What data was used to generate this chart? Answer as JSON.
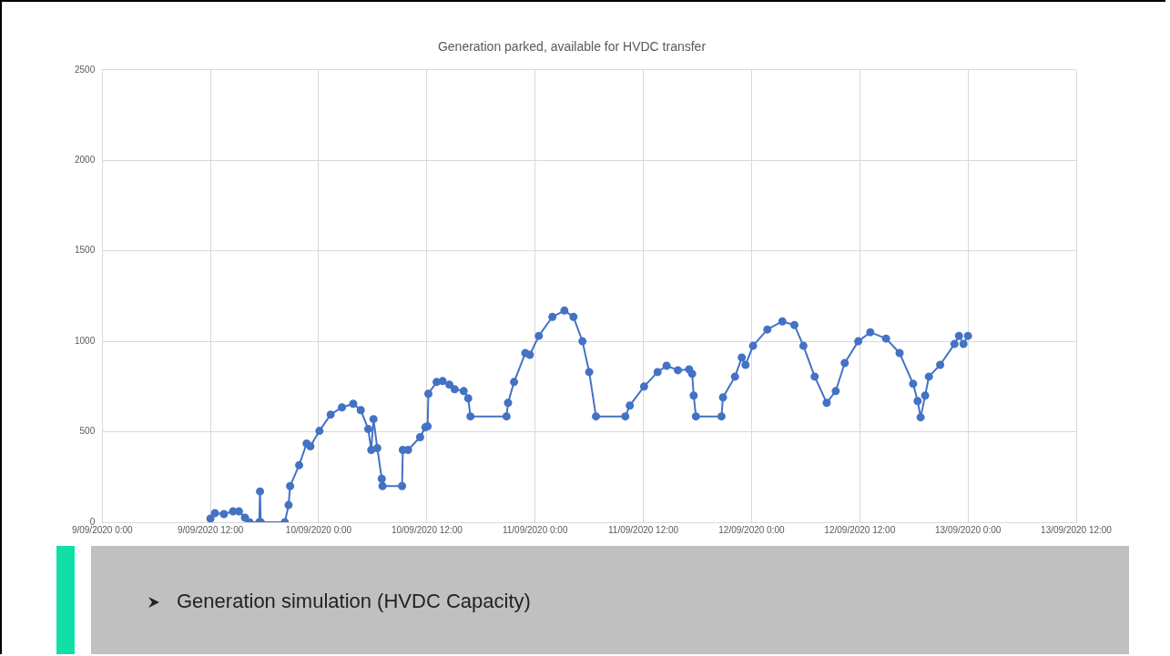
{
  "chart_data": {
    "type": "line",
    "title": "Generation parked, available for HVDC transfer",
    "color": "#4472c4",
    "marker": "circle",
    "grid": true,
    "legend": false,
    "xlim": [
      "2020-09-09T00:00",
      "2020-09-13T12:00"
    ],
    "xticks": [
      {
        "value": "2020-09-09T00:00",
        "label": "9/09/2020 0:00"
      },
      {
        "value": "2020-09-09T12:00",
        "label": "9/09/2020 12:00"
      },
      {
        "value": "2020-09-10T00:00",
        "label": "10/09/2020 0:00"
      },
      {
        "value": "2020-09-10T12:00",
        "label": "10/09/2020 12:00"
      },
      {
        "value": "2020-09-11T00:00",
        "label": "11/09/2020 0:00"
      },
      {
        "value": "2020-09-11T12:00",
        "label": "11/09/2020 12:00"
      },
      {
        "value": "2020-09-12T00:00",
        "label": "12/09/2020 0:00"
      },
      {
        "value": "2020-09-12T12:00",
        "label": "12/09/2020 12:00"
      },
      {
        "value": "2020-09-13T00:00",
        "label": "13/09/2020 0:00"
      },
      {
        "value": "2020-09-13T12:00",
        "label": "13/09/2020 12:00"
      }
    ],
    "ylim": [
      0,
      2500
    ],
    "yticks": [
      0,
      500,
      1000,
      1500,
      2000,
      2500
    ],
    "x": [
      "2020-09-09T12:00",
      "2020-09-09T12:30",
      "2020-09-09T13:30",
      "2020-09-09T14:30",
      "2020-09-09T15:10",
      "2020-09-09T15:50",
      "2020-09-09T16:20",
      "2020-09-09T17:25",
      "2020-09-09T17:30",
      "2020-09-09T17:35",
      "2020-09-09T20:15",
      "2020-09-09T20:40",
      "2020-09-09T20:50",
      "2020-09-09T21:50",
      "2020-09-09T22:40",
      "2020-09-09T23:05",
      "2020-09-10T00:05",
      "2020-09-10T01:20",
      "2020-09-10T02:35",
      "2020-09-10T03:50",
      "2020-09-10T04:40",
      "2020-09-10T05:30",
      "2020-09-10T05:50",
      "2020-09-10T06:05",
      "2020-09-10T06:30",
      "2020-09-10T07:00",
      "2020-09-10T07:05",
      "2020-09-10T09:15",
      "2020-09-10T09:20",
      "2020-09-10T09:55",
      "2020-09-10T11:15",
      "2020-09-10T11:50",
      "2020-09-10T12:05",
      "2020-09-10T12:10",
      "2020-09-10T13:05",
      "2020-09-10T13:45",
      "2020-09-10T14:30",
      "2020-09-10T15:05",
      "2020-09-10T16:05",
      "2020-09-10T16:35",
      "2020-09-10T16:50",
      "2020-09-10T20:50",
      "2020-09-10T21:00",
      "2020-09-10T21:40",
      "2020-09-10T22:55",
      "2020-09-10T23:25",
      "2020-09-11T00:25",
      "2020-09-11T01:55",
      "2020-09-11T03:15",
      "2020-09-11T04:15",
      "2020-09-11T05:15",
      "2020-09-11T06:00",
      "2020-09-11T06:45",
      "2020-09-11T10:00",
      "2020-09-11T10:30",
      "2020-09-11T12:05",
      "2020-09-11T13:35",
      "2020-09-11T14:35",
      "2020-09-11T15:50",
      "2020-09-11T17:05",
      "2020-09-11T17:25",
      "2020-09-11T17:35",
      "2020-09-11T17:50",
      "2020-09-11T20:40",
      "2020-09-11T20:50",
      "2020-09-11T22:10",
      "2020-09-11T22:55",
      "2020-09-11T23:20",
      "2020-09-12T00:10",
      "2020-09-12T01:45",
      "2020-09-12T03:25",
      "2020-09-12T04:45",
      "2020-09-12T05:45",
      "2020-09-12T07:00",
      "2020-09-12T08:20",
      "2020-09-12T09:20",
      "2020-09-12T10:20",
      "2020-09-12T11:50",
      "2020-09-12T13:10",
      "2020-09-12T14:55",
      "2020-09-12T16:25",
      "2020-09-12T17:55",
      "2020-09-12T18:25",
      "2020-09-12T18:45",
      "2020-09-12T19:15",
      "2020-09-12T19:40",
      "2020-09-12T20:55",
      "2020-09-12T22:30",
      "2020-09-12T23:00",
      "2020-09-12T23:30",
      "2020-09-13T00:00"
    ],
    "values": [
      20,
      50,
      45,
      60,
      60,
      25,
      0,
      0,
      170,
      0,
      0,
      95,
      200,
      315,
      435,
      420,
      505,
      595,
      635,
      655,
      620,
      515,
      400,
      570,
      410,
      240,
      200,
      200,
      400,
      400,
      470,
      525,
      530,
      710,
      775,
      780,
      760,
      735,
      725,
      685,
      585,
      585,
      660,
      775,
      935,
      925,
      1030,
      1135,
      1170,
      1135,
      1000,
      830,
      585,
      585,
      645,
      750,
      830,
      865,
      840,
      845,
      820,
      700,
      585,
      585,
      690,
      805,
      910,
      870,
      975,
      1065,
      1110,
      1090,
      975,
      805,
      660,
      725,
      880,
      1000,
      1050,
      1015,
      935,
      765,
      670,
      580,
      700,
      805,
      870,
      985,
      1030,
      985,
      1030
    ],
    "annotations": [
      "Generation simulation (HVDC Capacity)"
    ]
  }
}
